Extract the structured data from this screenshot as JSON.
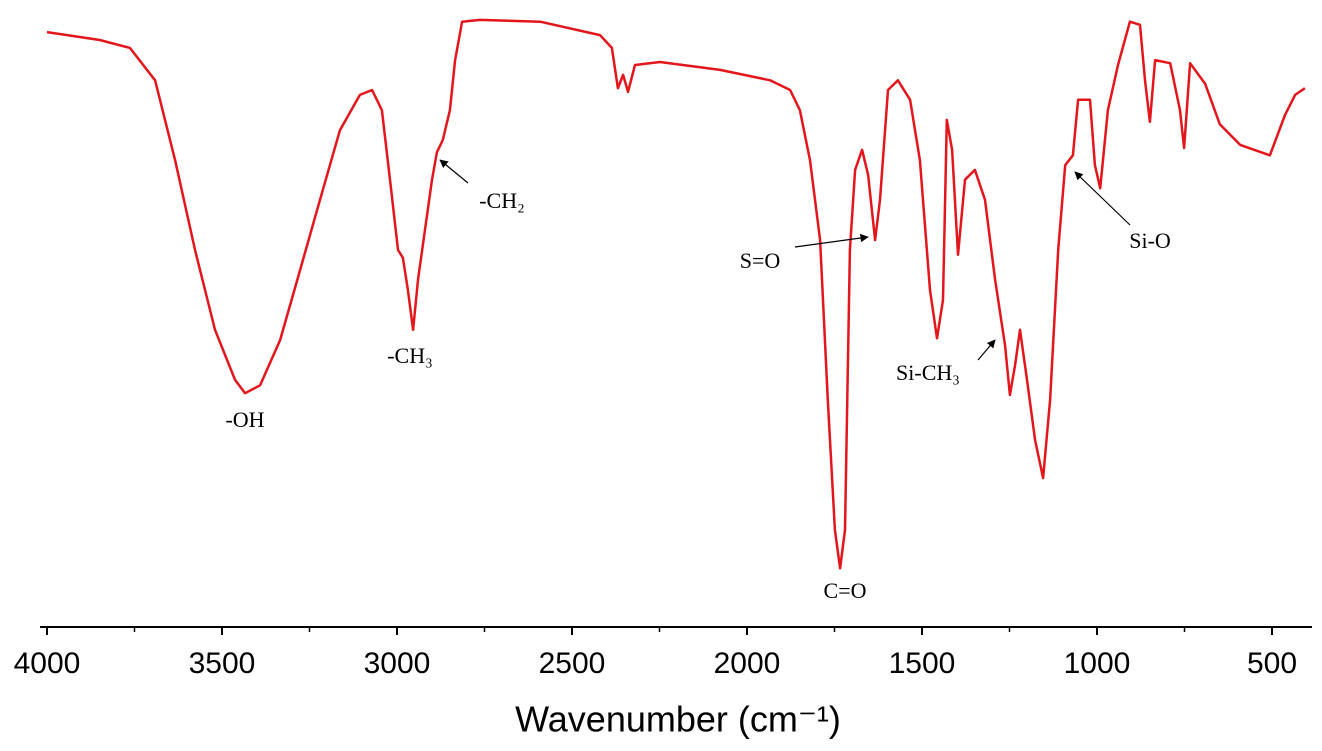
{
  "chart_data": {
    "type": "line",
    "xlabel": "Wavenumber (cm⁻¹)",
    "xlim": [
      4000,
      400
    ],
    "ylim": [
      0,
      100
    ],
    "xticks": [
      4000,
      3500,
      3000,
      2500,
      2000,
      1500,
      1000,
      500
    ],
    "xminorticks": [
      3750,
      3250,
      2750,
      2250,
      1750,
      1250,
      750
    ],
    "series": [
      {
        "color": "#e3161c",
        "x": [
          4000,
          3849,
          3763,
          3691,
          3634,
          3577,
          3520,
          3463,
          3434,
          3391,
          3334,
          3277,
          3220,
          3163,
          3106,
          3071,
          3043,
          3020,
          2997,
          2983,
          2969,
          2954,
          2940,
          2920,
          2900,
          2886,
          2869,
          2849,
          2834,
          2814,
          2763,
          2591,
          2420,
          2386,
          2369,
          2354,
          2340,
          2320,
          2249,
          2077,
          1934,
          1877,
          1849,
          1820,
          1791,
          1769,
          1749,
          1734,
          1720,
          1706,
          1691,
          1671,
          1654,
          1634,
          1620,
          1597,
          1569,
          1534,
          1506,
          1477,
          1457,
          1440,
          1429,
          1414,
          1397,
          1377,
          1349,
          1320,
          1291,
          1263,
          1249,
          1234,
          1220,
          1200,
          1177,
          1154,
          1134,
          1111,
          1091,
          1069,
          1054,
          1020,
          1006,
          991,
          969,
          940,
          906,
          877,
          863,
          849,
          834,
          791,
          763,
          751,
          734,
          691,
          649,
          591,
          506,
          463,
          434,
          406
        ],
        "values": [
          97.2,
          95.9,
          94.6,
          89.3,
          76.2,
          61.5,
          48.4,
          40.2,
          38.0,
          39.3,
          46.7,
          58.2,
          69.7,
          81.1,
          86.9,
          87.7,
          84.4,
          73.0,
          61.5,
          60.2,
          54.9,
          48.4,
          56.6,
          64.8,
          73.0,
          77.5,
          79.5,
          84.4,
          92.6,
          98.9,
          99.2,
          98.9,
          96.7,
          94.6,
          88.0,
          90.2,
          87.4,
          91.8,
          92.3,
          91.0,
          89.3,
          87.7,
          84.4,
          76.2,
          63.1,
          36.9,
          15.6,
          9.3,
          15.6,
          61.5,
          74.6,
          77.9,
          73.8,
          63.1,
          69.7,
          87.7,
          89.3,
          86.1,
          76.2,
          54.9,
          47.0,
          53.3,
          82.8,
          77.9,
          60.7,
          73.0,
          74.6,
          69.7,
          56.6,
          45.9,
          37.7,
          42.6,
          48.4,
          40.2,
          30.3,
          24.1,
          36.9,
          61.5,
          75.4,
          77.0,
          86.1,
          86.1,
          75.4,
          71.6,
          84.4,
          91.8,
          98.9,
          98.4,
          89.3,
          82.5,
          92.6,
          92.1,
          84.4,
          78.2,
          92.1,
          88.7,
          82.1,
          78.7,
          77.0,
          83.6,
          86.9,
          88.0
        ]
      }
    ],
    "annotations": [
      "-OH",
      "-CH₃",
      "-CH₂",
      "S=O",
      "C=O",
      "Si-CH₃",
      "Si-O"
    ]
  }
}
